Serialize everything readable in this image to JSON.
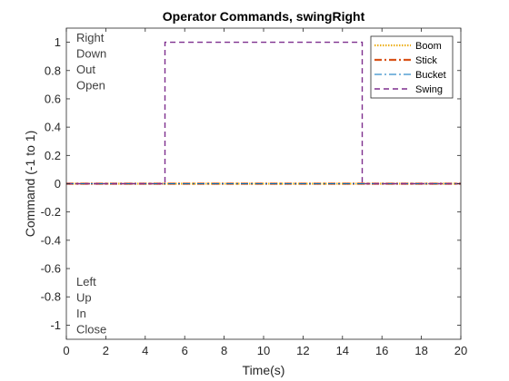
{
  "chart_data": {
    "type": "line",
    "title": "Operator Commands, swingRight",
    "xlabel": "Time(s)",
    "ylabel": "Command (-1 to 1)",
    "xlim": [
      0,
      20
    ],
    "ylim": [
      -1.1,
      1.1
    ],
    "xticks": [
      0,
      2,
      4,
      6,
      8,
      10,
      12,
      14,
      16,
      18,
      20
    ],
    "yticks": [
      -1,
      -0.8,
      -0.6,
      -0.4,
      -0.2,
      0,
      0.2,
      0.4,
      0.6,
      0.8,
      1
    ],
    "grid": false,
    "legend_position": "top-right",
    "series": [
      {
        "name": "Boom",
        "color": "#EDB120",
        "style": "dotted",
        "x": [
          0,
          20
        ],
        "y": [
          0,
          0
        ]
      },
      {
        "name": "Stick",
        "color": "#D95319",
        "style": "dashdot",
        "x": [
          0,
          20
        ],
        "y": [
          0,
          0
        ]
      },
      {
        "name": "Bucket",
        "color": "#0072BD",
        "style": "dashdot-thin",
        "x": [
          0,
          20
        ],
        "y": [
          0,
          0
        ]
      },
      {
        "name": "Swing",
        "color": "#7E2F8E",
        "style": "dashed",
        "x": [
          0,
          5,
          5,
          15,
          15,
          20
        ],
        "y": [
          0,
          0,
          1,
          1,
          0,
          0
        ]
      }
    ],
    "annotations_top": [
      "Right",
      "Down",
      "Out",
      "Open"
    ],
    "annotations_bottom": [
      "Left",
      "Up",
      "In",
      "Close"
    ]
  }
}
